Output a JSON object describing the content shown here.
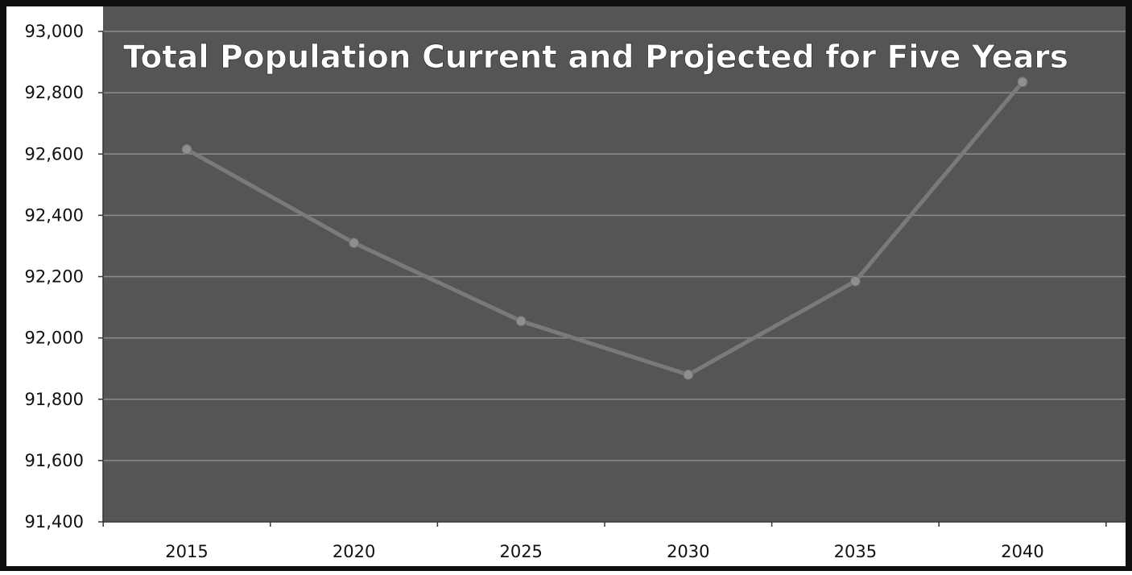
{
  "chart_data": {
    "type": "line",
    "title": "Total Population Current and Projected for Five Years",
    "xlabel": "",
    "ylabel": "",
    "categories": [
      "2015",
      "2020",
      "2025",
      "2030",
      "2035",
      "2040"
    ],
    "series": [
      {
        "values": [
          92615,
          92310,
          92055,
          91880,
          92185,
          92835
        ]
      }
    ],
    "ylim": [
      91400,
      93000
    ],
    "yticks": [
      93000,
      92800,
      92600,
      92400,
      92200,
      92000,
      91800,
      91600,
      91400
    ],
    "ytick_labels": [
      "93,000",
      "92,800",
      "92,600",
      "92,400",
      "92,200",
      "92,000",
      "91,800",
      "91,600",
      "91,400"
    ],
    "grid": true,
    "colors": {
      "outer_frame": "#101010",
      "plot_background": "#555555",
      "gridline": "#8c8c8c",
      "line": "#7a7a7a",
      "marker": "#8e8e8e",
      "title_text": "#ffffff",
      "axis_text": "#111111"
    }
  }
}
